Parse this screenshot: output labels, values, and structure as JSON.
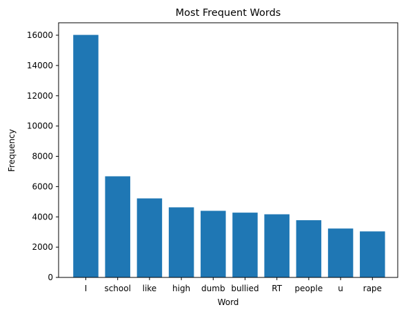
{
  "chart_data": {
    "type": "bar",
    "title": "Most Frequent Words",
    "xlabel": "Word",
    "ylabel": "Frequency",
    "categories": [
      "I",
      "school",
      "like",
      "high",
      "dumb",
      "bullied",
      "RT",
      "people",
      "u",
      "rape"
    ],
    "values": [
      16020,
      6680,
      5220,
      4630,
      4400,
      4280,
      4170,
      3780,
      3230,
      3040
    ],
    "ylim": [
      0,
      16821
    ],
    "yticks": [
      "0",
      "2000",
      "4000",
      "6000",
      "8000",
      "10000",
      "12000",
      "14000",
      "16000"
    ],
    "bar_color": "#1f77b4",
    "grid": false,
    "legend": "none"
  }
}
